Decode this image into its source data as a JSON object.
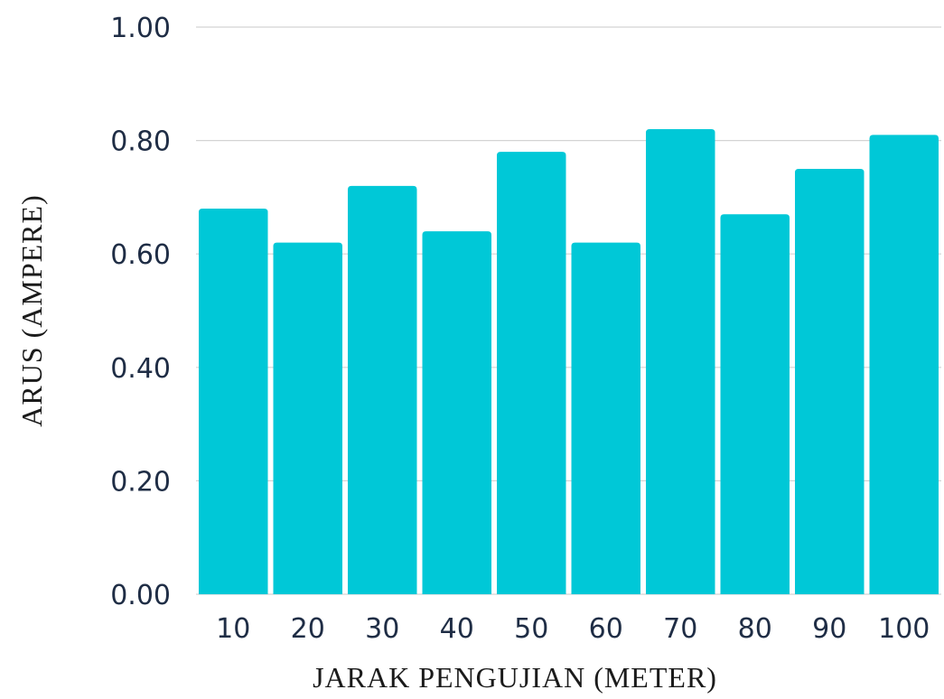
{
  "chart_data": {
    "type": "bar",
    "title": "",
    "xlabel": "JARAK PENGUJIAN (METER)",
    "ylabel": "ARUS (AMPERE)",
    "categories": [
      "10",
      "20",
      "30",
      "40",
      "50",
      "60",
      "70",
      "80",
      "90",
      "100"
    ],
    "values": [
      0.68,
      0.62,
      0.72,
      0.64,
      0.78,
      0.62,
      0.82,
      0.67,
      0.75,
      0.81
    ],
    "ylim": [
      0,
      1
    ],
    "y_ticks": [
      "0.00",
      "0.20",
      "0.40",
      "0.60",
      "0.80",
      "1.00"
    ],
    "grid": true,
    "legend": "none",
    "bar_color": "#00c8d7",
    "grid_color": "#d3d3d3",
    "tick_label_color": "#1f2d45",
    "axis_title_color": "#1b1b1b"
  }
}
